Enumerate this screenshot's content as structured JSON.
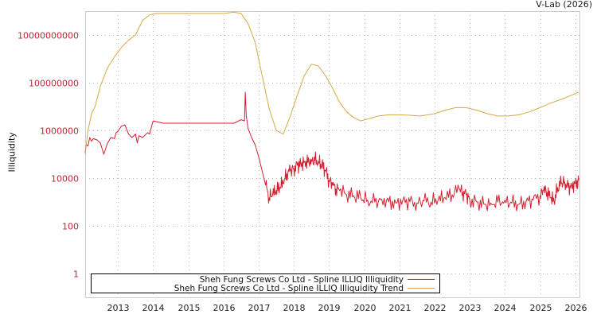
{
  "header": {
    "credit": "V-Lab (2026)"
  },
  "chart_data": {
    "type": "line",
    "title": "",
    "xlabel": "",
    "ylabel": "Illiquidity",
    "yscale": "log",
    "ylim": [
      0.1,
      100000000000
    ],
    "xlim": [
      2012.07,
      2026.1
    ],
    "grid": true,
    "legend_position": "bottom-left",
    "y_ticks": [
      {
        "value": 10000000000,
        "label": "10000000000"
      },
      {
        "value": 100000000,
        "label": "100000000"
      },
      {
        "value": 1000000,
        "label": "1000000"
      },
      {
        "value": 10000,
        "label": "10000"
      },
      {
        "value": 100,
        "label": "100"
      },
      {
        "value": 1,
        "label": "1"
      }
    ],
    "x_ticks": [
      "2013",
      "2014",
      "2015",
      "2016",
      "2017",
      "2018",
      "2019",
      "2020",
      "2021",
      "2022",
      "2023",
      "2024",
      "2025",
      "2026"
    ],
    "series": [
      {
        "name": "Sheh Fung Screws Co Ltd - Spline ILLIQ Illiquidity",
        "color": "#d62030",
        "x": [
          2012.07,
          2012.1,
          2012.15,
          2012.2,
          2012.25,
          2012.3,
          2012.4,
          2012.5,
          2012.6,
          2012.7,
          2012.8,
          2012.9,
          2012.95,
          2013.0,
          2013.1,
          2013.2,
          2013.3,
          2013.4,
          2013.5,
          2013.55,
          2013.6,
          2013.7,
          2013.8,
          2013.85,
          2013.9,
          2014.0,
          2014.3,
          2014.7,
          2015.0,
          2015.5,
          2016.0,
          2016.3,
          2016.5,
          2016.6,
          2016.62,
          2016.65,
          2016.7,
          2016.8,
          2016.9,
          2017.0,
          2017.1,
          2017.2,
          2017.3,
          2017.4,
          2017.5,
          2017.6,
          2017.7,
          2017.8,
          2017.9,
          2018.0,
          2018.1,
          2018.2,
          2018.3,
          2018.4,
          2018.5,
          2018.6,
          2018.7,
          2018.8,
          2018.9,
          2019.0,
          2019.1,
          2019.2,
          2019.3,
          2019.5,
          2019.7,
          2019.9,
          2020.1,
          2020.3,
          2020.5,
          2020.7,
          2020.9,
          2021.1,
          2021.3,
          2021.5,
          2021.7,
          2021.9,
          2022.1,
          2022.3,
          2022.5,
          2022.7,
          2022.8,
          2022.9,
          2023.0,
          2023.2,
          2023.4,
          2023.6,
          2023.8,
          2024.0,
          2024.2,
          2024.4,
          2024.6,
          2024.8,
          2025.0,
          2025.1,
          2025.2,
          2025.3,
          2025.4,
          2025.5,
          2025.6,
          2025.7,
          2025.8,
          2025.9,
          2026.0,
          2026.1
        ],
        "values": [
          120000,
          250000,
          220000,
          500000,
          350000,
          450000,
          400000,
          300000,
          100000,
          280000,
          500000,
          450000,
          800000,
          900000,
          1500000,
          1700000,
          700000,
          500000,
          700000,
          300000,
          600000,
          500000,
          700000,
          800000,
          700000,
          2500000,
          2000000,
          2000000,
          2000000,
          2000000,
          2000000,
          2000000,
          2800000,
          2500000,
          40000000,
          4000000,
          1200000,
          500000,
          250000,
          80000,
          20000,
          5000,
          1500,
          2000,
          3000,
          4000,
          6000,
          15000,
          20000,
          25000,
          35000,
          40000,
          50000,
          45000,
          60000,
          55000,
          50000,
          35000,
          20000,
          8000,
          5000,
          3500,
          3000,
          2000,
          1800,
          1500,
          1200,
          1000,
          1300,
          1000,
          900,
          1200,
          1000,
          900,
          1100,
          1000,
          1200,
          1500,
          2000,
          3500,
          2500,
          2000,
          1200,
          1000,
          800,
          900,
          1000,
          1200,
          900,
          800,
          1000,
          1200,
          1800,
          3000,
          2500,
          1500,
          1000,
          4000,
          6000,
          7000,
          4000,
          5000,
          6000,
          8000
        ]
      },
      {
        "name": "Sheh Fung Screws Co Ltd - Spline ILLIQ Illiquidity Trend",
        "color": "#d4aa44",
        "x": [
          2012.07,
          2012.15,
          2012.25,
          2012.35,
          2012.5,
          2012.7,
          2012.9,
          2013.1,
          2013.3,
          2013.5,
          2013.7,
          2013.9,
          2014.1,
          2014.3,
          2014.5,
          2015.0,
          2015.5,
          2016.0,
          2016.3,
          2016.5,
          2016.7,
          2016.9,
          2017.1,
          2017.3,
          2017.5,
          2017.7,
          2017.9,
          2018.1,
          2018.3,
          2018.5,
          2018.7,
          2018.9,
          2019.1,
          2019.3,
          2019.5,
          2019.7,
          2019.9,
          2020.1,
          2020.4,
          2020.7,
          2021.0,
          2021.3,
          2021.6,
          2022.0,
          2022.3,
          2022.6,
          2022.9,
          2023.2,
          2023.5,
          2023.8,
          2024.1,
          2024.4,
          2024.7,
          2025.0,
          2025.3,
          2025.6,
          2025.9,
          2026.1
        ],
        "values": [
          100000,
          1000000,
          5000000,
          10000000,
          70000000,
          400000000,
          1200000000,
          3000000000,
          6000000000,
          10000000000,
          40000000000,
          70000000000,
          80000000000,
          80000000000,
          80000000000,
          80000000000,
          80000000000,
          80000000000,
          90000000000,
          80000000000,
          30000000000,
          5000000000,
          200000000,
          8000000,
          1000000,
          700000,
          4000000,
          30000000,
          200000000,
          600000000,
          500000000,
          200000000,
          60000000,
          15000000,
          6000000,
          3500000,
          2500000,
          3000000,
          4000000,
          4500000,
          4500000,
          4300000,
          4000000,
          5000000,
          7000000,
          9000000,
          9000000,
          7000000,
          5000000,
          4000000,
          4000000,
          4500000,
          6000000,
          9000000,
          14000000,
          20000000,
          30000000,
          40000000
        ]
      }
    ]
  },
  "legend": {
    "items": [
      {
        "label": "Sheh Fung Screws Co Ltd - Spline ILLIQ Illiquidity",
        "color": "#d62030"
      },
      {
        "label": "Sheh Fung Screws Co Ltd - Spline ILLIQ Illiquidity Trend",
        "color": "#d4aa44"
      }
    ]
  }
}
